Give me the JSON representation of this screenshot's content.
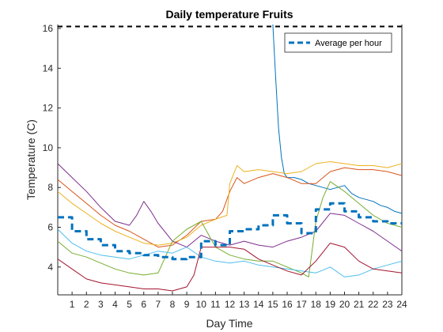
{
  "chart_data": {
    "type": "line",
    "title": "Daily temperature Fruits",
    "xlabel": "Day Time",
    "ylabel": "Temperature (C)",
    "xlim": [
      0,
      24
    ],
    "ylim": [
      2.6,
      16.2
    ],
    "xticks": [
      1,
      2,
      3,
      4,
      5,
      6,
      7,
      8,
      9,
      10,
      11,
      12,
      13,
      14,
      15,
      16,
      17,
      18,
      19,
      20,
      21,
      22,
      23,
      24
    ],
    "yticks": [
      4,
      6,
      8,
      10,
      12,
      14,
      16
    ],
    "grid": false,
    "legend": {
      "placement": "top-right",
      "entries": [
        "Average per hour"
      ]
    },
    "reference_line": {
      "y": 16.1,
      "style": "dashed",
      "color": "#000000"
    },
    "series": [
      {
        "color": "#0072BD",
        "x": [
          15,
          15.2,
          15.4,
          15.6,
          15.8,
          16,
          16.5,
          17,
          17.5,
          18,
          18.5,
          19,
          19.5,
          20,
          20.5,
          21,
          21.5,
          22,
          22.5,
          23,
          23.5,
          24
        ],
        "values": [
          16.2,
          13.5,
          11,
          9.5,
          8.7,
          8.5,
          8.5,
          8.4,
          8.2,
          8.1,
          8,
          7.9,
          8,
          8.1,
          7.7,
          7.5,
          7.4,
          7.3,
          7.1,
          7,
          6.8,
          6.7
        ]
      },
      {
        "color": "#D95319",
        "x": [
          0,
          1,
          2,
          3,
          4,
          5,
          6,
          7,
          8,
          9,
          10,
          11,
          11.5,
          12,
          12.5,
          13,
          14,
          15,
          16,
          17,
          18,
          19,
          20,
          21,
          22,
          23,
          24
        ],
        "values": [
          8.4,
          7.8,
          7.2,
          6.6,
          6.1,
          5.8,
          5.4,
          5,
          5.1,
          5.6,
          6.3,
          6.4,
          6.8,
          7.8,
          8.5,
          8.2,
          8.5,
          8.7,
          8.5,
          8.2,
          8.2,
          8.8,
          9,
          8.9,
          8.9,
          8.8,
          8.6
        ]
      },
      {
        "color": "#EDB120",
        "x": [
          0,
          1,
          2,
          3,
          4,
          5,
          6,
          7,
          8,
          9,
          10,
          11,
          11.8,
          12,
          12.5,
          13,
          14,
          15,
          16,
          17,
          18,
          19,
          20,
          21,
          22,
          23,
          24
        ],
        "values": [
          7.8,
          7.2,
          6.7,
          6.2,
          5.8,
          5.5,
          5.2,
          5.1,
          5.2,
          5.5,
          6.1,
          6.4,
          6.6,
          8.2,
          9.1,
          8.8,
          8.9,
          8.8,
          8.7,
          8.8,
          9.2,
          9.3,
          9.2,
          9.1,
          9.1,
          9,
          9.2
        ]
      },
      {
        "color": "#7E2F8E",
        "x": [
          0,
          1,
          2,
          3,
          4,
          5,
          5.5,
          6,
          6.5,
          7,
          8,
          9,
          10,
          11,
          12,
          13,
          14,
          15,
          16,
          17,
          18,
          19,
          20,
          21,
          22,
          23,
          24
        ],
        "values": [
          9.2,
          8.5,
          7.8,
          7,
          6.3,
          6.1,
          6.6,
          7.3,
          6.8,
          6.2,
          5.3,
          5,
          5.6,
          5.3,
          5.1,
          5.3,
          5.1,
          5,
          5.3,
          5.5,
          5.8,
          6.7,
          6.6,
          6.2,
          5.8,
          5.3,
          4.8
        ]
      },
      {
        "color": "#77AC30",
        "x": [
          0,
          1,
          2,
          3,
          4,
          5,
          6,
          7,
          8,
          9,
          10,
          11,
          12,
          13,
          14,
          15,
          16,
          17,
          17.5,
          18,
          18.5,
          19,
          20,
          21,
          22,
          23,
          24
        ],
        "values": [
          5.3,
          4.7,
          4.5,
          4.2,
          3.9,
          3.7,
          3.6,
          3.7,
          5.3,
          5.9,
          6.3,
          5,
          4.6,
          4.4,
          4.3,
          4.3,
          4,
          3.7,
          3.5,
          6.3,
          7.5,
          8.3,
          7.8,
          7.2,
          6.6,
          6.2,
          6
        ]
      },
      {
        "color": "#4DBEEE",
        "x": [
          0,
          1,
          2,
          3,
          4,
          5,
          6,
          7,
          8,
          9,
          10,
          11,
          12,
          13,
          14,
          15,
          16,
          17,
          18,
          19,
          20,
          21,
          22,
          23,
          24
        ],
        "values": [
          5.9,
          5.2,
          4.8,
          4.6,
          4.5,
          4.4,
          4.6,
          4.8,
          4.7,
          5,
          4.5,
          4.3,
          4.2,
          4.3,
          4.1,
          4,
          3.9,
          3.8,
          3.7,
          4,
          3.5,
          3.6,
          3.9,
          4.1,
          4.3
        ]
      },
      {
        "color": "#A2142F",
        "x": [
          0,
          1,
          2,
          3,
          4,
          5,
          6,
          7,
          8,
          9,
          9.5,
          10,
          11,
          12,
          13,
          14,
          15,
          16,
          17,
          18,
          19,
          20,
          21,
          22,
          23,
          24
        ],
        "values": [
          4.4,
          3.9,
          3.4,
          3.2,
          3.1,
          3,
          2.9,
          2.9,
          2.8,
          3,
          3.6,
          5,
          5,
          5,
          4.9,
          4.4,
          4.1,
          3.8,
          3.6,
          4.3,
          5.2,
          5,
          4.3,
          3.9,
          3.8,
          3.7
        ]
      },
      {
        "name": "Average per hour",
        "color": "#0072BD",
        "dashed": true,
        "step": true,
        "x": [
          0,
          1,
          2,
          3,
          4,
          5,
          6,
          7,
          8,
          9,
          10,
          11,
          12,
          13,
          14,
          15,
          16,
          17,
          18,
          19,
          20,
          21,
          22,
          23,
          24
        ],
        "values": [
          6.5,
          5.8,
          5.4,
          5.1,
          4.8,
          4.7,
          4.6,
          4.5,
          4.4,
          4.5,
          5.3,
          5.1,
          5.8,
          5.9,
          6.1,
          6.6,
          6.2,
          5.7,
          6.9,
          7.2,
          6.8,
          6.5,
          6.3,
          6.2,
          6.2
        ]
      }
    ]
  }
}
